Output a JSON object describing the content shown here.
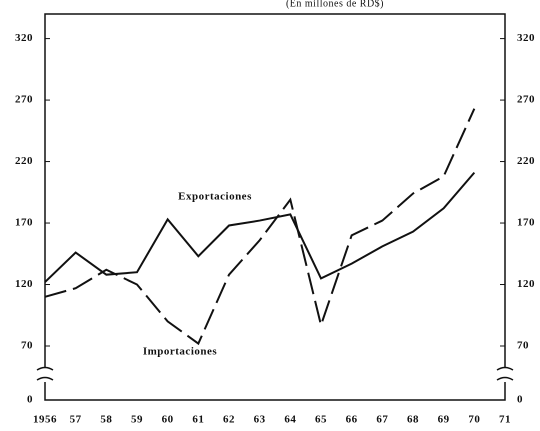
{
  "chart_data": {
    "type": "line",
    "subtitle": "(En millones de RD$)",
    "categories": [
      "1956",
      "57",
      "58",
      "59",
      "60",
      "61",
      "62",
      "63",
      "64",
      "65",
      "66",
      "67",
      "68",
      "69",
      "70",
      "71"
    ],
    "series": [
      {
        "name": "Exportaciones",
        "color": "#111111",
        "dash": "solid",
        "values": [
          122,
          146,
          128,
          130,
          173,
          143,
          168,
          172,
          177,
          125,
          137,
          151,
          163,
          182,
          211,
          null
        ]
      },
      {
        "name": "Importaciones",
        "color": "#111111",
        "dash": "dashed",
        "values": [
          110,
          117,
          132,
          120,
          90,
          72,
          128,
          156,
          189,
          87,
          160,
          172,
          194,
          208,
          263,
          null
        ]
      }
    ],
    "ylim": [
      0,
      340
    ],
    "yticks": [
      0,
      70,
      120,
      170,
      220,
      270,
      320
    ],
    "axis_break": true,
    "right_axis": true
  }
}
